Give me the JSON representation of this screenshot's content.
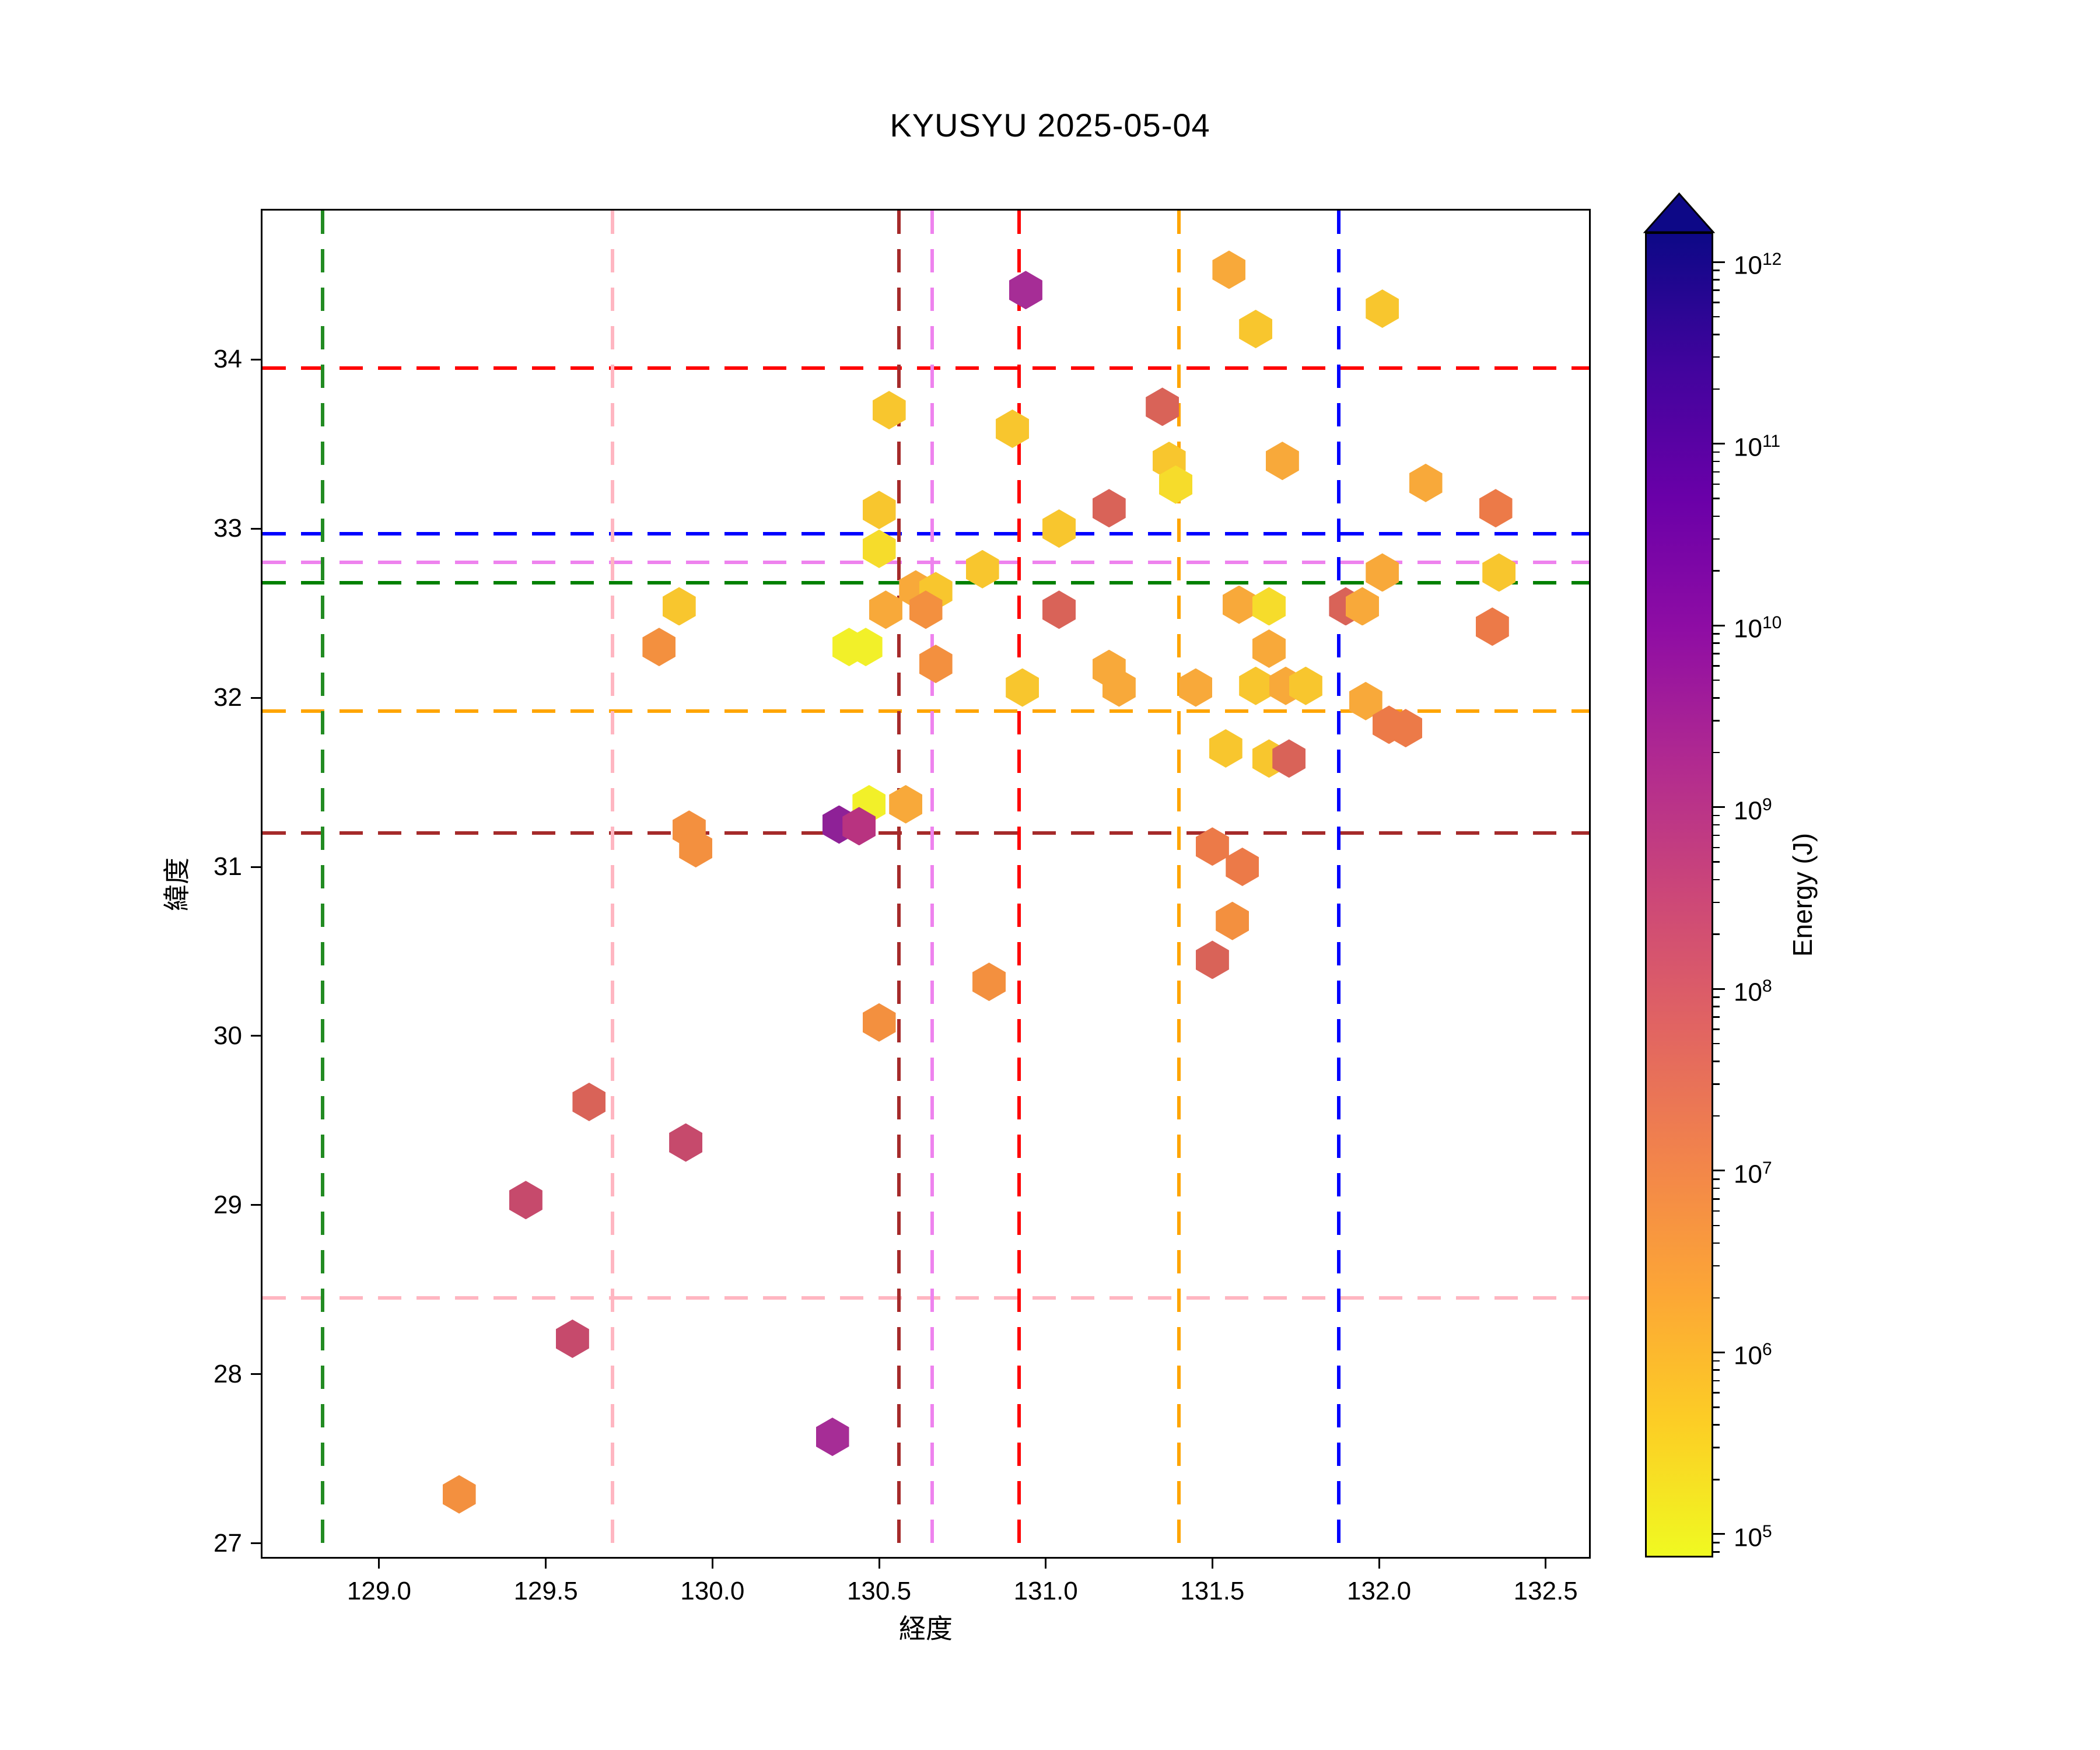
{
  "title": "KYUSYU 2025-05-04",
  "chart_data": {
    "type": "scatter",
    "marker": "hexagon",
    "title": "KYUSYU 2025-05-04",
    "xlabel": "経度",
    "ylabel": "緯度",
    "xlim": [
      128.65,
      132.63
    ],
    "ylim": [
      26.92,
      34.88
    ],
    "grid": false,
    "xticks": [
      {
        "value": 129.0,
        "label": "129.0"
      },
      {
        "value": 129.5,
        "label": "129.5"
      },
      {
        "value": 130.0,
        "label": "130.0"
      },
      {
        "value": 130.5,
        "label": "130.5"
      },
      {
        "value": 131.0,
        "label": "131.0"
      },
      {
        "value": 131.5,
        "label": "131.5"
      },
      {
        "value": 132.0,
        "label": "132.0"
      },
      {
        "value": 132.5,
        "label": "132.5"
      }
    ],
    "yticks": [
      {
        "value": 27,
        "label": "27"
      },
      {
        "value": 28,
        "label": "28"
      },
      {
        "value": 29,
        "label": "29"
      },
      {
        "value": 30,
        "label": "30"
      },
      {
        "value": 31,
        "label": "31"
      },
      {
        "value": 32,
        "label": "32"
      },
      {
        "value": 33,
        "label": "33"
      },
      {
        "value": 34,
        "label": "34"
      }
    ],
    "colorbar": {
      "label": "Energy (J)",
      "scale": "log",
      "extend": "max",
      "vmax_exp": 12.164,
      "vmin_exp": 4.871,
      "tick_exponents": [
        12,
        11,
        10,
        9,
        8,
        7,
        6,
        5
      ],
      "cmap_stops_top_to_bottom": [
        "#0d0887",
        "#41049d",
        "#6a00a8",
        "#8f0da4",
        "#b12a90",
        "#cc4778",
        "#e16462",
        "#f2844b",
        "#fca636",
        "#fcce25",
        "#f0f921"
      ]
    },
    "color_classes": [
      {
        "color": "#f2f029",
        "energy_est_exp": 4.9
      },
      {
        "color": "#f6dc2b",
        "energy_est_exp": 5.3
      },
      {
        "color": "#f8c62e",
        "energy_est_exp": 5.8
      },
      {
        "color": "#f8a93a",
        "energy_est_exp": 6.3
      },
      {
        "color": "#f3903f",
        "energy_est_exp": 6.9
      },
      {
        "color": "#ec7a48",
        "energy_est_exp": 7.3
      },
      {
        "color": "#d96358",
        "energy_est_exp": 7.9
      },
      {
        "color": "#c64a6c",
        "energy_est_exp": 8.5
      },
      {
        "color": "#b83380",
        "energy_est_exp": 9.0
      },
      {
        "color": "#a62d96",
        "energy_est_exp": 9.6
      },
      {
        "color": "#8e2197",
        "energy_est_exp": 10.0
      }
    ],
    "points_lon_lat_class": [
      [
        130.94,
        34.41,
        9
      ],
      [
        131.55,
        34.53,
        3
      ],
      [
        131.63,
        34.18,
        2
      ],
      [
        132.01,
        34.3,
        2
      ],
      [
        131.35,
        33.72,
        6
      ],
      [
        130.53,
        33.7,
        2
      ],
      [
        130.9,
        33.59,
        2
      ],
      [
        131.37,
        33.4,
        2
      ],
      [
        131.39,
        33.26,
        1
      ],
      [
        131.71,
        33.4,
        3
      ],
      [
        132.14,
        33.27,
        3
      ],
      [
        132.35,
        33.12,
        5
      ],
      [
        131.19,
        33.12,
        6
      ],
      [
        130.5,
        33.11,
        2
      ],
      [
        131.04,
        33.0,
        2
      ],
      [
        130.5,
        32.88,
        1
      ],
      [
        130.81,
        32.76,
        2
      ],
      [
        132.01,
        32.74,
        3
      ],
      [
        132.36,
        32.74,
        2
      ],
      [
        130.61,
        32.64,
        3
      ],
      [
        130.67,
        32.63,
        2
      ],
      [
        130.64,
        32.52,
        4
      ],
      [
        130.52,
        32.52,
        3
      ],
      [
        131.04,
        32.52,
        6
      ],
      [
        131.58,
        32.55,
        3
      ],
      [
        131.67,
        32.54,
        1
      ],
      [
        131.9,
        32.54,
        6
      ],
      [
        131.95,
        32.54,
        3
      ],
      [
        132.34,
        32.42,
        5
      ],
      [
        129.9,
        32.54,
        2
      ],
      [
        129.84,
        32.3,
        4
      ],
      [
        130.41,
        32.3,
        0
      ],
      [
        130.46,
        32.3,
        0
      ],
      [
        131.67,
        32.29,
        3
      ],
      [
        130.67,
        32.2,
        4
      ],
      [
        131.19,
        32.17,
        3
      ],
      [
        130.93,
        32.06,
        2
      ],
      [
        131.22,
        32.06,
        3
      ],
      [
        131.45,
        32.06,
        3
      ],
      [
        131.63,
        32.07,
        2
      ],
      [
        131.72,
        32.07,
        3
      ],
      [
        131.78,
        32.07,
        2
      ],
      [
        131.96,
        31.98,
        3
      ],
      [
        132.03,
        31.84,
        5
      ],
      [
        132.08,
        31.82,
        5
      ],
      [
        131.54,
        31.7,
        2
      ],
      [
        131.67,
        31.64,
        2
      ],
      [
        131.73,
        31.64,
        6
      ],
      [
        130.47,
        31.37,
        0
      ],
      [
        130.58,
        31.37,
        3
      ],
      [
        130.38,
        31.25,
        10
      ],
      [
        130.44,
        31.24,
        8
      ],
      [
        129.93,
        31.22,
        4
      ],
      [
        129.95,
        31.11,
        4
      ],
      [
        131.5,
        31.12,
        5
      ],
      [
        131.59,
        31.0,
        5
      ],
      [
        131.56,
        30.68,
        4
      ],
      [
        131.5,
        30.45,
        6
      ],
      [
        130.83,
        30.32,
        4
      ],
      [
        130.5,
        30.08,
        4
      ],
      [
        129.63,
        29.61,
        6
      ],
      [
        129.92,
        29.37,
        7
      ],
      [
        129.44,
        29.03,
        7
      ],
      [
        129.58,
        28.21,
        7
      ],
      [
        130.36,
        27.63,
        9
      ],
      [
        129.24,
        27.29,
        4
      ]
    ],
    "vlines": [
      {
        "x": 128.83,
        "color": "#228B22"
      },
      {
        "x": 129.7,
        "color": "#FFB6C1"
      },
      {
        "x": 130.56,
        "color": "#A52A2A"
      },
      {
        "x": 130.66,
        "color": "#EE82EE"
      },
      {
        "x": 130.92,
        "color": "#FF0000"
      },
      {
        "x": 131.4,
        "color": "#FFA500"
      },
      {
        "x": 131.88,
        "color": "#0000FF"
      }
    ],
    "hlines": [
      {
        "y": 33.95,
        "color": "#FF0000"
      },
      {
        "y": 32.97,
        "color": "#0000FF"
      },
      {
        "y": 32.8,
        "color": "#EE82EE"
      },
      {
        "y": 32.68,
        "color": "#008000"
      },
      {
        "y": 31.92,
        "color": "#FFA500"
      },
      {
        "y": 31.2,
        "color": "#A52A2A"
      },
      {
        "y": 28.45,
        "color": "#FFB6C1"
      }
    ]
  }
}
